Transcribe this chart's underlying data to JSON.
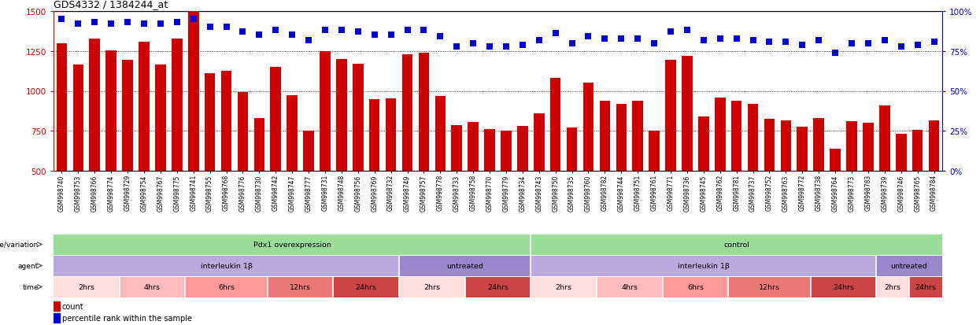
{
  "title": "GDS4332 / 1384244_at",
  "samples": [
    "GSM998740",
    "GSM998753",
    "GSM998766",
    "GSM998774",
    "GSM998729",
    "GSM998754",
    "GSM998767",
    "GSM998775",
    "GSM998741",
    "GSM998755",
    "GSM998768",
    "GSM998776",
    "GSM998730",
    "GSM998742",
    "GSM998747",
    "GSM998777",
    "GSM998731",
    "GSM998748",
    "GSM998756",
    "GSM998769",
    "GSM998732",
    "GSM998749",
    "GSM998757",
    "GSM998778",
    "GSM998733",
    "GSM998758",
    "GSM998770",
    "GSM998779",
    "GSM998734",
    "GSM998743",
    "GSM998750",
    "GSM998735",
    "GSM998760",
    "GSM998782",
    "GSM998744",
    "GSM998751",
    "GSM998761",
    "GSM998771",
    "GSM998736",
    "GSM998745",
    "GSM998762",
    "GSM998781",
    "GSM998737",
    "GSM998752",
    "GSM998763",
    "GSM998772",
    "GSM998738",
    "GSM998764",
    "GSM998773",
    "GSM998783",
    "GSM998739",
    "GSM998746",
    "GSM998765",
    "GSM998784"
  ],
  "bar_values": [
    1300,
    1165,
    1330,
    1255,
    1195,
    1310,
    1165,
    1330,
    1500,
    1110,
    1125,
    995,
    830,
    1150,
    975,
    750,
    1250,
    1200,
    1170,
    950,
    955,
    1230,
    1240,
    970,
    785,
    805,
    760,
    750,
    780,
    860,
    1080,
    770,
    1050,
    940,
    920,
    940,
    750,
    1195,
    1220,
    840,
    960,
    940,
    920,
    825,
    815,
    775,
    830,
    640,
    810,
    800,
    910,
    730,
    755,
    815
  ],
  "percentile_values": [
    95,
    92,
    93,
    92,
    93,
    92,
    92,
    93,
    95,
    90,
    90,
    87,
    85,
    88,
    85,
    82,
    88,
    88,
    87,
    85,
    85,
    88,
    88,
    84,
    78,
    80,
    78,
    78,
    79,
    82,
    86,
    80,
    84,
    83,
    83,
    83,
    80,
    87,
    88,
    82,
    83,
    83,
    82,
    81,
    81,
    79,
    82,
    74,
    80,
    80,
    82,
    78,
    79,
    81
  ],
  "ylim_left": [
    500,
    1500
  ],
  "ylim_right": [
    0,
    100
  ],
  "yticks_left": [
    500,
    750,
    1000,
    1250,
    1500
  ],
  "yticks_right": [
    0,
    25,
    50,
    75,
    100
  ],
  "bar_color": "#cc0000",
  "percentile_color": "#0000cc",
  "bg_color": "#ffffff",
  "band_rows": [
    {
      "label": "genotype/variation",
      "segments": [
        {
          "text": "Pdx1 overexpression",
          "start": 0,
          "end": 29,
          "color": "#99dd99"
        },
        {
          "text": "control",
          "start": 29,
          "end": 54,
          "color": "#99dd99"
        }
      ]
    },
    {
      "label": "agent",
      "segments": [
        {
          "text": "interleukin 1β",
          "start": 0,
          "end": 21,
          "color": "#bbaadd"
        },
        {
          "text": "untreated",
          "start": 21,
          "end": 29,
          "color": "#9988cc"
        },
        {
          "text": "interleukin 1β",
          "start": 29,
          "end": 50,
          "color": "#bbaadd"
        },
        {
          "text": "untreated",
          "start": 50,
          "end": 54,
          "color": "#9988cc"
        }
      ]
    },
    {
      "label": "time",
      "segments": [
        {
          "text": "2hrs",
          "start": 0,
          "end": 4,
          "color": "#ffdddd"
        },
        {
          "text": "4hrs",
          "start": 4,
          "end": 8,
          "color": "#ffbbbb"
        },
        {
          "text": "6hrs",
          "start": 8,
          "end": 13,
          "color": "#ff9999"
        },
        {
          "text": "12hrs",
          "start": 13,
          "end": 17,
          "color": "#ee7777"
        },
        {
          "text": "24hrs",
          "start": 17,
          "end": 21,
          "color": "#cc4444"
        },
        {
          "text": "2hrs",
          "start": 21,
          "end": 25,
          "color": "#ffdddd"
        },
        {
          "text": "24hrs",
          "start": 25,
          "end": 29,
          "color": "#cc4444"
        },
        {
          "text": "2hrs",
          "start": 29,
          "end": 33,
          "color": "#ffdddd"
        },
        {
          "text": "4hrs",
          "start": 33,
          "end": 37,
          "color": "#ffbbbb"
        },
        {
          "text": "6hrs",
          "start": 37,
          "end": 41,
          "color": "#ff9999"
        },
        {
          "text": "12hrs",
          "start": 41,
          "end": 46,
          "color": "#ee7777"
        },
        {
          "text": "24hrs",
          "start": 46,
          "end": 50,
          "color": "#cc4444"
        },
        {
          "text": "2hrs",
          "start": 50,
          "end": 52,
          "color": "#ffdddd"
        },
        {
          "text": "24hrs",
          "start": 52,
          "end": 54,
          "color": "#cc4444"
        }
      ]
    }
  ],
  "legend_items": [
    {
      "color": "#cc0000",
      "label": "count"
    },
    {
      "color": "#0000cc",
      "label": "percentile rank within the sample"
    }
  ]
}
